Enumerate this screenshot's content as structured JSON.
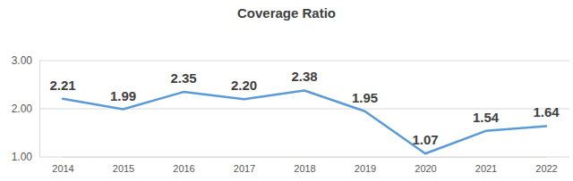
{
  "chart_data": {
    "type": "line",
    "title": "Coverage Ratio",
    "categories": [
      "2014",
      "2015",
      "2016",
      "2017",
      "2018",
      "2019",
      "2020",
      "2021",
      "2022"
    ],
    "values": [
      2.21,
      1.99,
      2.35,
      2.2,
      2.38,
      1.95,
      1.07,
      1.54,
      1.64
    ],
    "value_labels": [
      "2.21",
      "1.99",
      "2.35",
      "2.20",
      "2.38",
      "1.95",
      "1.07",
      "1.54",
      "1.64"
    ],
    "color": "#5b9bd5",
    "ylim": [
      1,
      3
    ],
    "yticks": [
      {
        "value": 1,
        "label": "1.00"
      },
      {
        "value": 2,
        "label": "2.00"
      },
      {
        "value": 3,
        "label": "3.00"
      }
    ],
    "grid": true,
    "data_labels": true
  }
}
